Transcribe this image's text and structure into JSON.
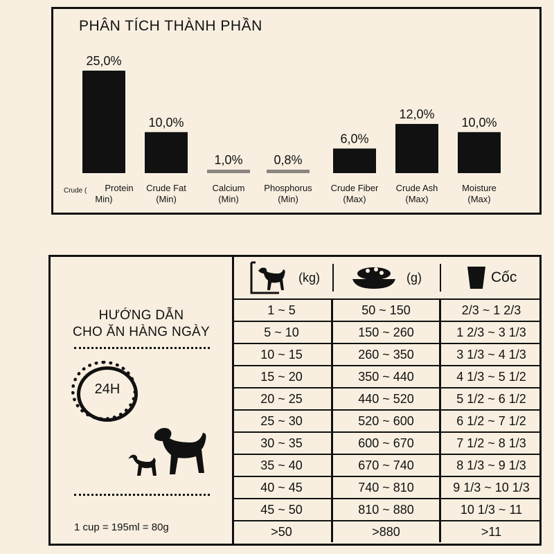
{
  "chart_data": {
    "type": "bar",
    "title": "PHÂN TÍCH THÀNH PHẦN",
    "categories": [
      "Crude Protein",
      "Crude Fat",
      "Calcium",
      "Phosphorus",
      "Crude Fiber",
      "Crude Ash",
      "Moisture"
    ],
    "category_lines": [
      [
        "Crude (",
        "Protein",
        "Min)"
      ],
      [
        "Crude Fat",
        "(Min)"
      ],
      [
        "Calcium",
        "(Min)"
      ],
      [
        "Phosphorus",
        "(Min)"
      ],
      [
        "Crude Fiber",
        "(Max)"
      ],
      [
        "Crude Ash",
        "(Max)"
      ],
      [
        "Moisture",
        "(Max)"
      ]
    ],
    "values": [
      25.0,
      10.0,
      1.0,
      0.8,
      6.0,
      12.0,
      10.0
    ],
    "value_labels": [
      "25,0%",
      "10,0%",
      "1,0%",
      "0,8%",
      "6,0%",
      "12,0%",
      "10,0%"
    ],
    "colors": {
      "bar": "#111111",
      "bar_small": "#8a8580"
    },
    "grid": false
  },
  "guide": {
    "title_line1": "HƯỚNG DẪN",
    "title_line2": "CHO ĂN HÀNG NGÀY",
    "clock_label": "24H",
    "cup_note": "1 cup = 195ml = 80g",
    "header": {
      "weight_unit": "(kg)",
      "food_unit": "(g)",
      "cup_label": "Cốc"
    },
    "icons": [
      "dog-scale-icon",
      "food-bowl-icon",
      "cup-icon",
      "clock-icon",
      "dogs-icon"
    ],
    "rows": [
      [
        "1 ~ 5",
        "50 ~ 150",
        "2/3 ~ 1 2/3"
      ],
      [
        "5 ~ 10",
        "150 ~ 260",
        "1 2/3 ~ 3 1/3"
      ],
      [
        "10 ~ 15",
        "260 ~ 350",
        "3 1/3 ~ 4 1/3"
      ],
      [
        "15 ~ 20",
        "350 ~ 440",
        "4 1/3 ~ 5 1/2"
      ],
      [
        "20 ~ 25",
        "440 ~ 520",
        "5 1/2 ~ 6 1/2"
      ],
      [
        "25 ~ 30",
        "520 ~ 600",
        "6 1/2 ~ 7 1/2"
      ],
      [
        "30 ~ 35",
        "600 ~ 670",
        "7 1/2 ~ 8 1/3"
      ],
      [
        "35 ~ 40",
        "670 ~ 740",
        "8 1/3 ~ 9 1/3"
      ],
      [
        "40 ~ 45",
        "740 ~ 810",
        "9 1/3 ~ 10 1/3"
      ],
      [
        "45 ~ 50",
        "810 ~ 880",
        "10 1/3 ~ 11"
      ],
      [
        ">50",
        ">880",
        ">11"
      ]
    ]
  }
}
